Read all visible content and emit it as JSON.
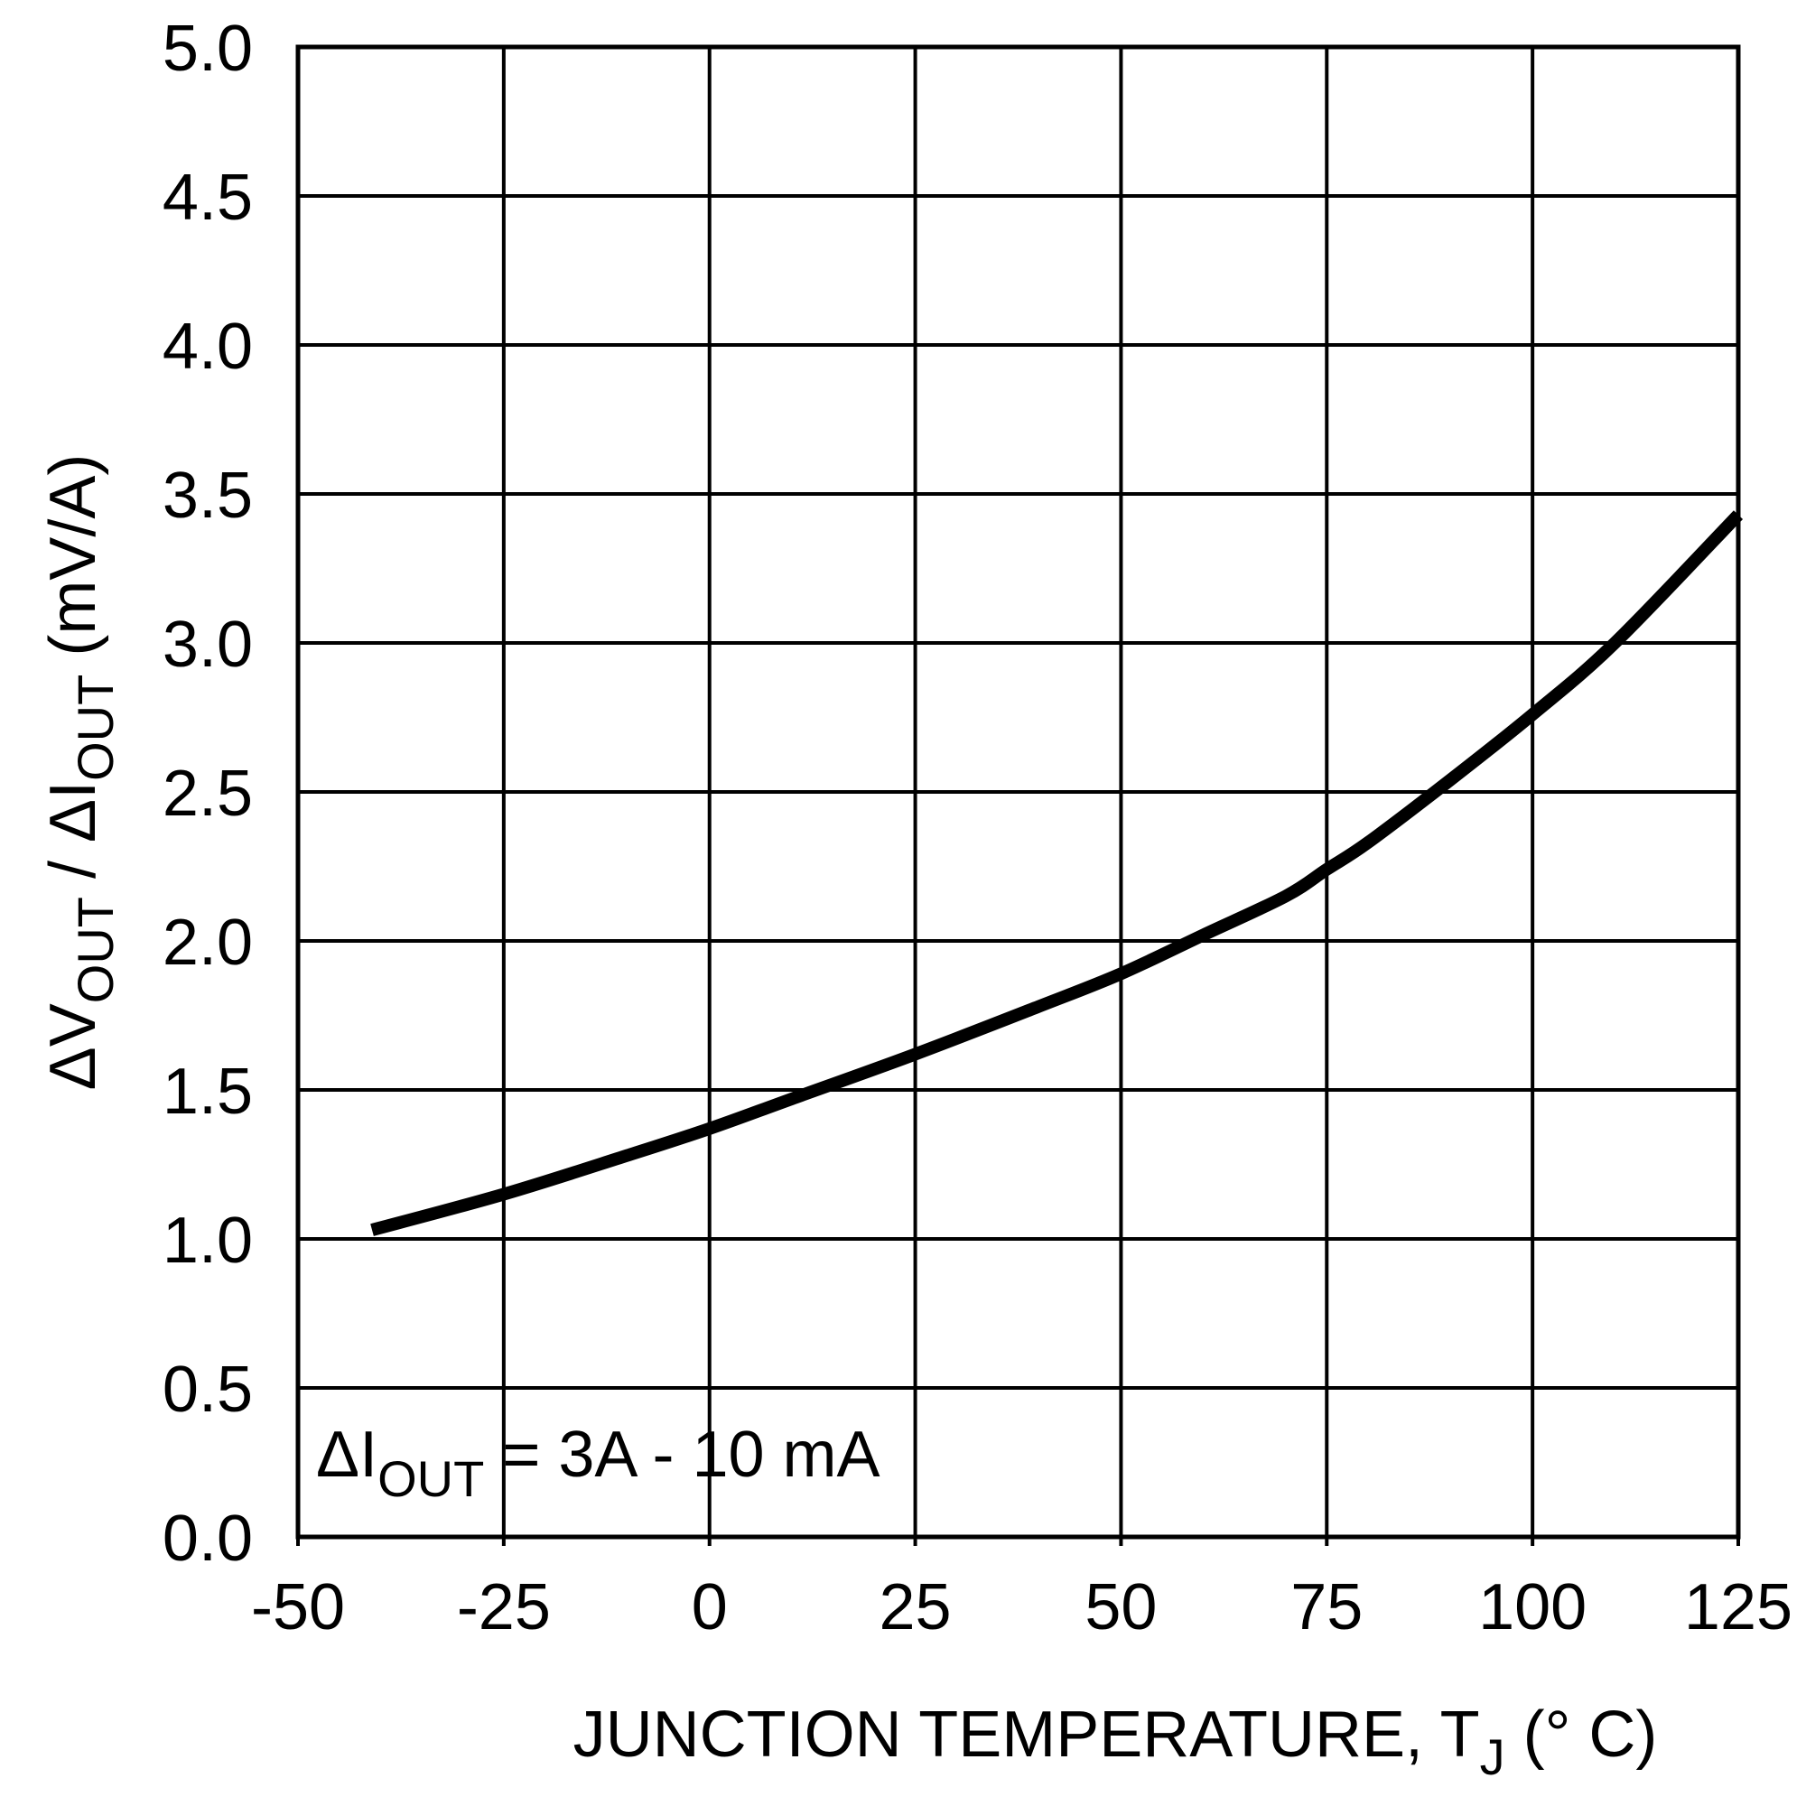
{
  "chart_data": {
    "type": "line",
    "title": "",
    "xlabel": {
      "main": "JUNCTION TEMPERATURE, T",
      "sub": "J",
      "tail": " (° C)"
    },
    "ylabel": {
      "delta1": "ΔV",
      "sub1": "OUT",
      "mid": " / ΔI",
      "sub2": "OUT",
      "tail": " (mV/A)"
    },
    "xlim": [
      -50,
      125
    ],
    "ylim": [
      0,
      5
    ],
    "x_ticks": [
      -50,
      -25,
      0,
      25,
      50,
      75,
      100,
      125
    ],
    "y_ticks": [
      0.0,
      0.5,
      1.0,
      1.5,
      2.0,
      2.5,
      3.0,
      3.5,
      4.0,
      4.5,
      5.0
    ],
    "x_tick_labels": [
      "-50",
      "-25",
      "0",
      "25",
      "50",
      "75",
      "100",
      "125"
    ],
    "y_tick_labels": [
      "0.0",
      "0.5",
      "1.0",
      "1.5",
      "2.0",
      "2.5",
      "3.0",
      "3.5",
      "4.0",
      "4.5",
      "5.0"
    ],
    "grid": true,
    "annotation": {
      "prefix": "ΔI",
      "sub": "OUT",
      "suffix": " = 3A - 10 mA"
    },
    "series": [
      {
        "color": "#000000",
        "x": [
          -41,
          -25,
          -10,
          0,
          10,
          25,
          40,
          50,
          60,
          70,
          75,
          80,
          90,
          100,
          110,
          125
        ],
        "y": [
          1.03,
          1.15,
          1.28,
          1.37,
          1.47,
          1.62,
          1.78,
          1.89,
          2.02,
          2.15,
          2.24,
          2.33,
          2.54,
          2.76,
          3.0,
          3.43
        ]
      }
    ]
  }
}
